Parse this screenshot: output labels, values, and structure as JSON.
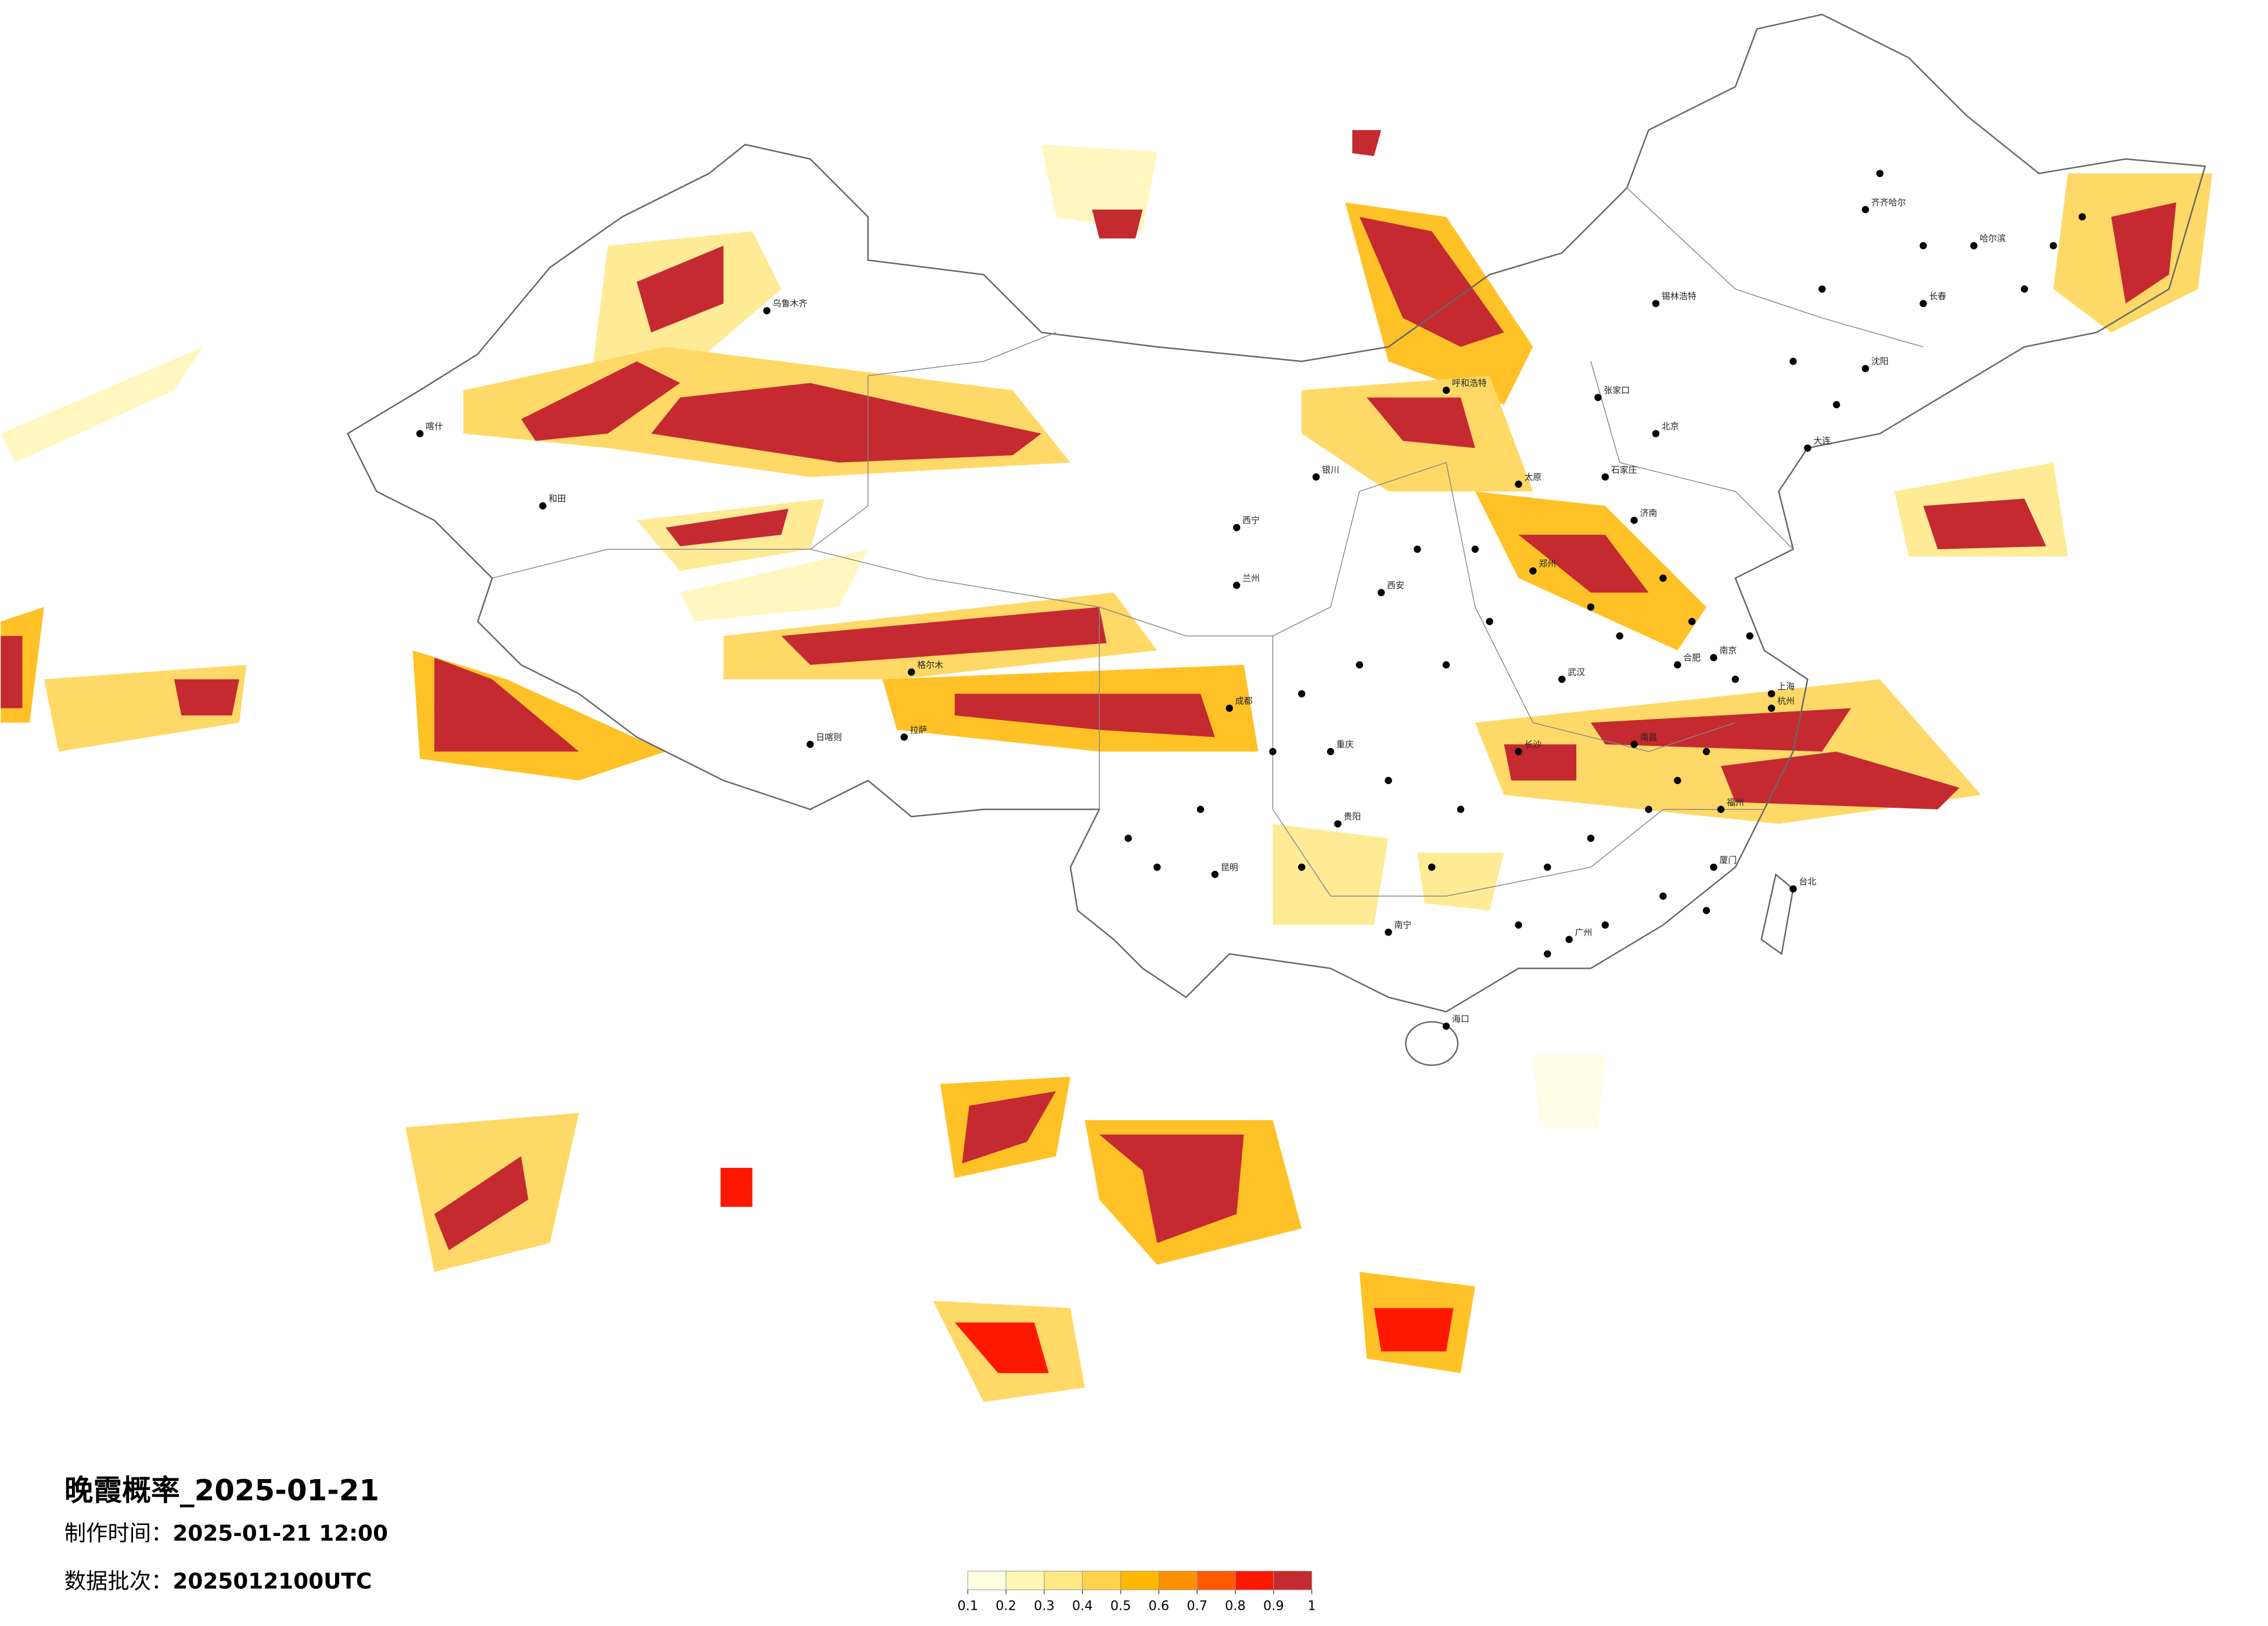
{
  "title": "晚霞概率_2025-01-21",
  "made_time": {
    "label": "制作时间：",
    "value": "2025-01-21 12:00"
  },
  "batch": {
    "label": "数据批次：",
    "value": "2025012100UTC"
  },
  "colorbar": {
    "ticks": [
      0.1,
      0.2,
      0.3,
      0.4,
      0.5,
      0.6,
      0.7,
      0.8,
      0.9,
      1
    ],
    "colors": [
      "#fffde2",
      "#fff6b4",
      "#ffe784",
      "#ffd24c",
      "#ffb700",
      "#ff9000",
      "#ff5a00",
      "#ff1800",
      "#c42a30"
    ]
  },
  "cities": [
    "北京",
    "上海",
    "广州",
    "成都",
    "武汉",
    "西安",
    "拉萨",
    "乌鲁木齐",
    "哈尔滨",
    "呼和浩特",
    "昆明",
    "南宁",
    "海口",
    "台北",
    "和田",
    "西宁",
    "兰州",
    "银川",
    "长春",
    "沈阳",
    "郑州",
    "济南",
    "南京",
    "杭州",
    "福州",
    "长沙",
    "贵阳",
    "重庆",
    "南昌",
    "合肥",
    "石家庄",
    "太原",
    "格尔木",
    "日喀则",
    "喀什",
    "齐齐哈尔",
    "锡林浩特",
    "张家口",
    "大连",
    "厦门"
  ]
}
